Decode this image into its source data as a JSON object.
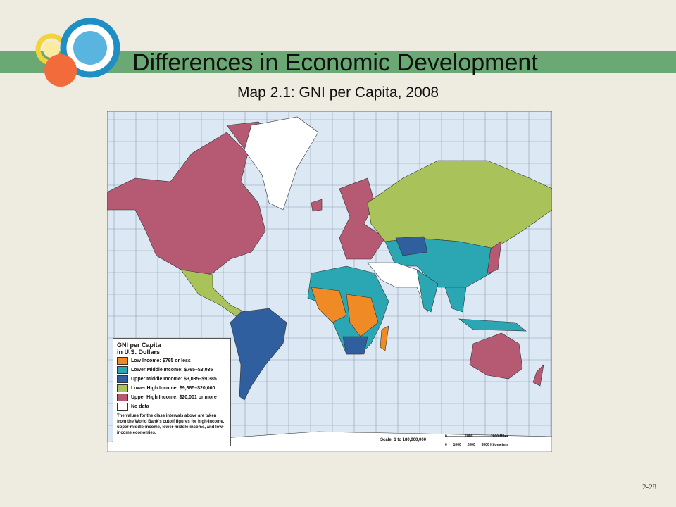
{
  "slide": {
    "title": "Differences in Economic Development",
    "subtitle": "Map 2.1: GNI per Capita, 2008",
    "page_number": "2-28"
  },
  "map": {
    "legend": {
      "title_lines": [
        "GNI per Capita",
        "in U.S. Dollars"
      ],
      "entries": [
        {
          "label": "Low Income: $765 or less",
          "color": "#f08a24"
        },
        {
          "label": "Lower Middle Income: $765–$3,035",
          "color": "#2aa7b3"
        },
        {
          "label": "Upper Middle Income: $3,035–$9,385",
          "color": "#2f5f9e"
        },
        {
          "label": "Lower High Income: $9,385–$20,000",
          "color": "#a9c25a"
        },
        {
          "label": "Upper High Income: $20,001 or more",
          "color": "#b55a72"
        },
        {
          "label": "No data",
          "color": "#ffffff"
        }
      ],
      "note": "The values for the class intervals above are taken from the World Bank's cutoff figures for high-income, upper-middle-income, lower-middle-income, and low-income economies."
    },
    "scale": {
      "text": "Scale: 1 to 180,000,000",
      "miles_labels": [
        "0",
        "1000",
        "2000 Miles"
      ],
      "km_labels": [
        "0",
        "1000",
        "2000",
        "3000 Kilometers"
      ]
    }
  }
}
